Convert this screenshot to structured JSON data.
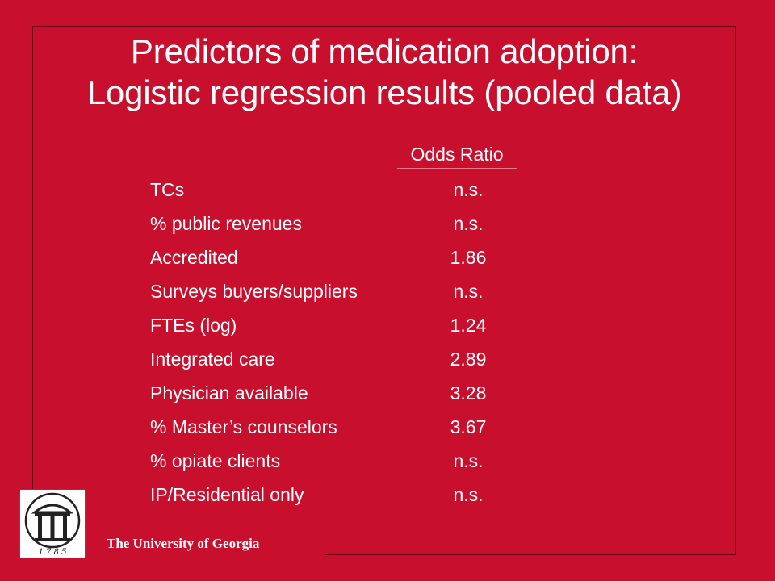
{
  "title": {
    "line1": "Predictors of medication adoption:",
    "line2": "Logistic regression results (pooled data)"
  },
  "table": {
    "column_header": "Odds Ratio",
    "rows": [
      {
        "label": "TCs",
        "value": "n.s."
      },
      {
        "label": "% public revenues",
        "value": "n.s."
      },
      {
        "label": "Accredited",
        "value": "1.86"
      },
      {
        "label": "Surveys buyers/suppliers",
        "value": "n.s."
      },
      {
        "label": "FTEs (log)",
        "value": "1.24"
      },
      {
        "label": "Integrated care",
        "value": "2.89"
      },
      {
        "label": "Physician available",
        "value": "3.28"
      },
      {
        "label": "% Master’s counselors",
        "value": "3.67"
      },
      {
        "label": "% opiate clients",
        "value": "n.s."
      },
      {
        "label": "IP/Residential only",
        "value": "n.s."
      }
    ]
  },
  "footer": {
    "institution": "The University of Georgia",
    "logo_year": "1 7 8 5",
    "logo_icon": "arch-logo-icon"
  },
  "colors": {
    "background": "#c8102e",
    "text": "#ffffff"
  }
}
